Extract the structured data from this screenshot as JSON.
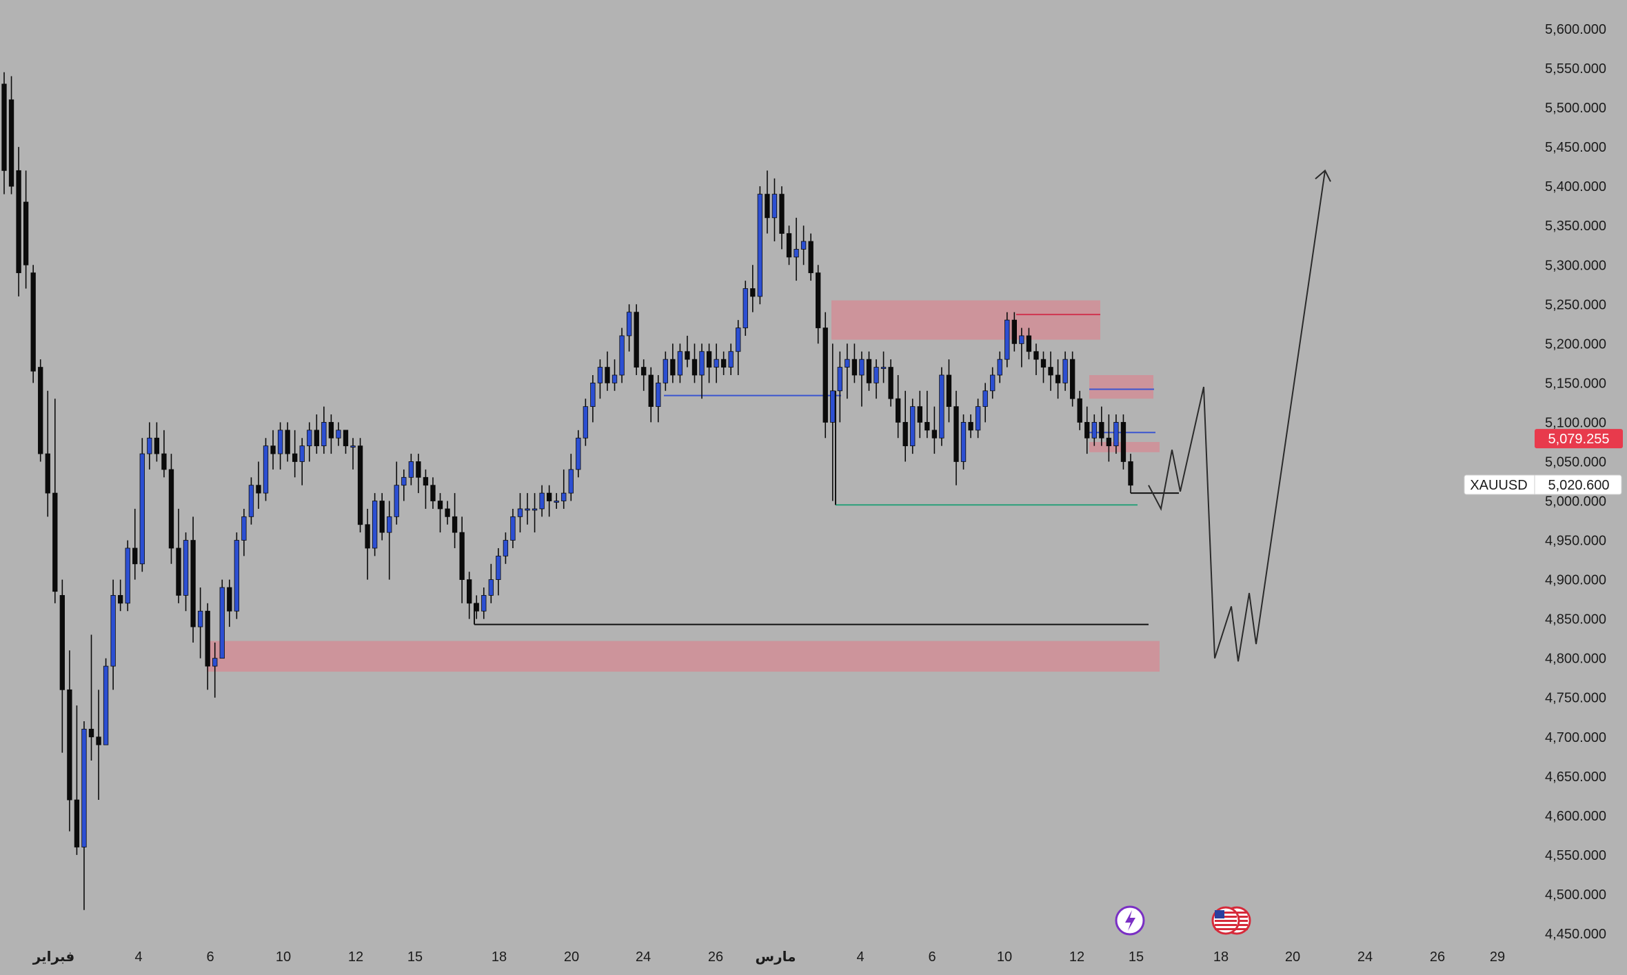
{
  "chart_data": {
    "type": "candlestick",
    "symbol": "XAUUSD",
    "current_price": "5,020.600",
    "alert_price": "5,079.255",
    "ylim": [
      4450,
      5625
    ],
    "y_ticks": [
      "5,600.000",
      "5,550.000",
      "5,500.000",
      "5,450.000",
      "5,400.000",
      "5,350.000",
      "5,300.000",
      "5,250.000",
      "5,200.000",
      "5,150.000",
      "5,100.000",
      "5,050.000",
      "5,000.000",
      "4,950.000",
      "4,900.000",
      "4,850.000",
      "4,800.000",
      "4,750.000",
      "4,700.000",
      "4,650.000",
      "4,600.000",
      "4,550.000",
      "4,500.000",
      "4,450.000"
    ],
    "x_ticks": [
      {
        "label": "فبراير",
        "bold": true
      },
      {
        "label": "4"
      },
      {
        "label": "6"
      },
      {
        "label": "10"
      },
      {
        "label": "12"
      },
      {
        "label": "15"
      },
      {
        "label": "18"
      },
      {
        "label": "20"
      },
      {
        "label": "24"
      },
      {
        "label": "26"
      },
      {
        "label": "مارس",
        "bold": true
      },
      {
        "label": "4"
      },
      {
        "label": "6"
      },
      {
        "label": "10"
      },
      {
        "label": "12"
      },
      {
        "label": "15"
      },
      {
        "label": "18"
      },
      {
        "label": "20"
      },
      {
        "label": "24"
      },
      {
        "label": "26"
      },
      {
        "label": "29"
      }
    ],
    "candles_ohlc": [
      [
        5530,
        5545,
        5390,
        5420
      ],
      [
        5510,
        5540,
        5390,
        5400
      ],
      [
        5420,
        5450,
        5260,
        5290
      ],
      [
        5380,
        5420,
        5270,
        5300
      ],
      [
        5290,
        5300,
        5150,
        5165
      ],
      [
        5170,
        5180,
        5050,
        5060
      ],
      [
        5060,
        5140,
        4980,
        5010
      ],
      [
        5010,
        5130,
        4870,
        4885
      ],
      [
        4880,
        4900,
        4680,
        4760
      ],
      [
        4760,
        4810,
        4580,
        4620
      ],
      [
        4620,
        4740,
        4550,
        4560
      ],
      [
        4560,
        4720,
        4480,
        4710
      ],
      [
        4710,
        4830,
        4670,
        4700
      ],
      [
        4700,
        4760,
        4620,
        4690
      ],
      [
        4690,
        4800,
        4690,
        4790
      ],
      [
        4790,
        4900,
        4760,
        4880
      ],
      [
        4880,
        4900,
        4860,
        4870
      ],
      [
        4870,
        4950,
        4860,
        4940
      ],
      [
        4940,
        4990,
        4900,
        4920
      ],
      [
        4920,
        5080,
        4910,
        5060
      ],
      [
        5060,
        5100,
        5040,
        5080
      ],
      [
        5080,
        5100,
        5050,
        5060
      ],
      [
        5060,
        5090,
        5030,
        5040
      ],
      [
        5040,
        5060,
        4920,
        4940
      ],
      [
        4940,
        4990,
        4870,
        4880
      ],
      [
        4880,
        4960,
        4860,
        4950
      ],
      [
        4950,
        4980,
        4820,
        4840
      ],
      [
        4840,
        4890,
        4800,
        4860
      ],
      [
        4860,
        4870,
        4760,
        4790
      ],
      [
        4790,
        4820,
        4750,
        4800
      ],
      [
        4800,
        4900,
        4800,
        4890
      ],
      [
        4890,
        4900,
        4840,
        4860
      ],
      [
        4860,
        4960,
        4850,
        4950
      ],
      [
        4950,
        4990,
        4930,
        4980
      ],
      [
        4980,
        5030,
        4970,
        5020
      ],
      [
        5020,
        5050,
        4990,
        5010
      ],
      [
        5010,
        5080,
        5000,
        5070
      ],
      [
        5070,
        5090,
        5040,
        5060
      ],
      [
        5060,
        5100,
        5040,
        5090
      ],
      [
        5090,
        5100,
        5050,
        5060
      ],
      [
        5060,
        5090,
        5030,
        5050
      ],
      [
        5050,
        5080,
        5020,
        5070
      ],
      [
        5070,
        5100,
        5050,
        5090
      ],
      [
        5090,
        5110,
        5060,
        5070
      ],
      [
        5070,
        5120,
        5060,
        5100
      ],
      [
        5100,
        5110,
        5060,
        5080
      ],
      [
        5080,
        5100,
        5070,
        5090
      ],
      [
        5090,
        5090,
        5060,
        5070
      ],
      [
        5070,
        5080,
        5040,
        5070
      ],
      [
        5070,
        5080,
        4960,
        4970
      ],
      [
        4970,
        4990,
        4900,
        4940
      ],
      [
        4940,
        5010,
        4930,
        5000
      ],
      [
        5000,
        5010,
        4950,
        4960
      ],
      [
        4960,
        5000,
        4900,
        4980
      ],
      [
        4980,
        5050,
        4970,
        5020
      ],
      [
        5020,
        5040,
        5000,
        5030
      ],
      [
        5030,
        5060,
        5020,
        5050
      ],
      [
        5050,
        5060,
        5010,
        5030
      ],
      [
        5030,
        5040,
        4990,
        5020
      ],
      [
        5020,
        5030,
        4990,
        5000
      ],
      [
        5000,
        5010,
        4960,
        4990
      ],
      [
        4990,
        5000,
        4970,
        4980
      ],
      [
        4980,
        5010,
        4940,
        4960
      ],
      [
        4960,
        4980,
        4870,
        4900
      ],
      [
        4900,
        4910,
        4850,
        4870
      ],
      [
        4870,
        4880,
        4850,
        4860
      ],
      [
        4860,
        4890,
        4850,
        4880
      ],
      [
        4880,
        4920,
        4870,
        4900
      ],
      [
        4900,
        4940,
        4880,
        4930
      ],
      [
        4930,
        4960,
        4920,
        4950
      ],
      [
        4950,
        4990,
        4940,
        4980
      ],
      [
        4980,
        5010,
        4960,
        4990
      ],
      [
        4990,
        5010,
        4970,
        4990
      ],
      [
        4990,
        5010,
        4960,
        4990
      ],
      [
        4990,
        5020,
        4980,
        5010
      ],
      [
        5010,
        5020,
        4980,
        5000
      ],
      [
        5000,
        5010,
        4990,
        5000
      ],
      [
        5000,
        5040,
        4990,
        5010
      ],
      [
        5010,
        5060,
        5000,
        5040
      ],
      [
        5040,
        5090,
        5030,
        5080
      ],
      [
        5080,
        5130,
        5070,
        5120
      ],
      [
        5120,
        5160,
        5100,
        5150
      ],
      [
        5150,
        5180,
        5130,
        5170
      ],
      [
        5170,
        5190,
        5140,
        5150
      ],
      [
        5150,
        5180,
        5140,
        5160
      ],
      [
        5160,
        5220,
        5150,
        5210
      ],
      [
        5210,
        5250,
        5190,
        5240
      ],
      [
        5240,
        5250,
        5160,
        5170
      ],
      [
        5170,
        5180,
        5140,
        5160
      ],
      [
        5160,
        5170,
        5100,
        5120
      ],
      [
        5120,
        5160,
        5100,
        5150
      ],
      [
        5150,
        5190,
        5140,
        5180
      ],
      [
        5180,
        5200,
        5150,
        5160
      ],
      [
        5160,
        5200,
        5150,
        5190
      ],
      [
        5190,
        5210,
        5170,
        5180
      ],
      [
        5180,
        5200,
        5150,
        5160
      ],
      [
        5160,
        5200,
        5130,
        5190
      ],
      [
        5190,
        5200,
        5150,
        5170
      ],
      [
        5170,
        5200,
        5150,
        5180
      ],
      [
        5180,
        5190,
        5160,
        5170
      ],
      [
        5170,
        5200,
        5160,
        5190
      ],
      [
        5190,
        5230,
        5160,
        5220
      ],
      [
        5220,
        5280,
        5210,
        5270
      ],
      [
        5270,
        5300,
        5240,
        5260
      ],
      [
        5260,
        5400,
        5250,
        5390
      ],
      [
        5390,
        5420,
        5340,
        5360
      ],
      [
        5360,
        5410,
        5330,
        5390
      ],
      [
        5390,
        5400,
        5320,
        5340
      ],
      [
        5340,
        5350,
        5300,
        5310
      ],
      [
        5310,
        5360,
        5280,
        5320
      ],
      [
        5320,
        5350,
        5300,
        5330
      ],
      [
        5330,
        5340,
        5280,
        5290
      ],
      [
        5290,
        5300,
        5200,
        5220
      ],
      [
        5220,
        5240,
        5080,
        5100
      ],
      [
        5100,
        5200,
        5000,
        5140
      ],
      [
        5140,
        5190,
        5100,
        5170
      ],
      [
        5170,
        5200,
        5130,
        5180
      ],
      [
        5180,
        5200,
        5150,
        5160
      ],
      [
        5160,
        5190,
        5120,
        5180
      ],
      [
        5180,
        5190,
        5140,
        5150
      ],
      [
        5150,
        5180,
        5130,
        5170
      ],
      [
        5170,
        5190,
        5150,
        5170
      ],
      [
        5170,
        5180,
        5120,
        5130
      ],
      [
        5130,
        5160,
        5080,
        5100
      ],
      [
        5100,
        5140,
        5050,
        5070
      ],
      [
        5070,
        5130,
        5060,
        5120
      ],
      [
        5120,
        5140,
        5080,
        5100
      ],
      [
        5100,
        5140,
        5080,
        5090
      ],
      [
        5090,
        5120,
        5060,
        5080
      ],
      [
        5080,
        5170,
        5070,
        5160
      ],
      [
        5160,
        5180,
        5100,
        5120
      ],
      [
        5120,
        5140,
        5020,
        5050
      ],
      [
        5050,
        5110,
        5040,
        5100
      ],
      [
        5100,
        5110,
        5080,
        5090
      ],
      [
        5090,
        5130,
        5080,
        5120
      ],
      [
        5120,
        5150,
        5100,
        5140
      ],
      [
        5140,
        5170,
        5130,
        5160
      ],
      [
        5160,
        5190,
        5150,
        5180
      ],
      [
        5180,
        5240,
        5170,
        5230
      ],
      [
        5230,
        5240,
        5190,
        5200
      ],
      [
        5200,
        5220,
        5170,
        5210
      ],
      [
        5210,
        5220,
        5180,
        5190
      ],
      [
        5190,
        5200,
        5160,
        5180
      ],
      [
        5180,
        5190,
        5150,
        5170
      ],
      [
        5170,
        5190,
        5140,
        5160
      ],
      [
        5160,
        5180,
        5130,
        5150
      ],
      [
        5150,
        5190,
        5140,
        5180
      ],
      [
        5180,
        5190,
        5120,
        5130
      ],
      [
        5130,
        5140,
        5090,
        5100
      ],
      [
        5100,
        5120,
        5060,
        5080
      ],
      [
        5080,
        5110,
        5070,
        5100
      ],
      [
        5100,
        5120,
        5070,
        5080
      ],
      [
        5080,
        5110,
        5050,
        5070
      ],
      [
        5070,
        5110,
        5060,
        5100
      ],
      [
        5100,
        5110,
        5040,
        5050
      ],
      [
        5050,
        5060,
        5010,
        5020
      ]
    ],
    "zones": [
      {
        "name": "supply-zone-upper",
        "y_top": 5255,
        "y_bottom": 5205
      },
      {
        "name": "supply-zone-mid",
        "y_top": 5160,
        "y_bottom": 5130
      },
      {
        "name": "supply-zone-small",
        "y_top": 5075,
        "y_bottom": 5062
      },
      {
        "name": "demand-zone-lower",
        "y_top": 4822,
        "y_bottom": 4783
      }
    ],
    "levels": [
      {
        "name": "red-level",
        "y": 5237,
        "color": "#d0344f"
      },
      {
        "name": "blue-level-mid",
        "y": 5142,
        "color": "#3a55d0"
      },
      {
        "name": "blue-level-left",
        "y": 5134,
        "color": "#3a55d0"
      },
      {
        "name": "blue-level-short",
        "y": 5087,
        "color": "#3a55d0"
      },
      {
        "name": "green-level",
        "y": 4995,
        "color": "#2aa07a"
      },
      {
        "name": "black-level",
        "y": 4843,
        "color": "#111111"
      }
    ],
    "projection_path": [
      [
        5020,
        5010
      ],
      [
        4990,
        5065
      ],
      [
        5012,
        5145
      ],
      [
        4800,
        4866
      ],
      [
        4796,
        4883
      ],
      [
        4818,
        5420
      ]
    ],
    "colors": {
      "background": "#b3b3b3",
      "up_candle": "#2c4fd2",
      "down_candle": "#0b0b0b",
      "zone_fill": "#e27a86",
      "price_tag_red": "#e83a4c"
    },
    "icons": [
      "lightning-icon",
      "us-flag-icon"
    ]
  }
}
